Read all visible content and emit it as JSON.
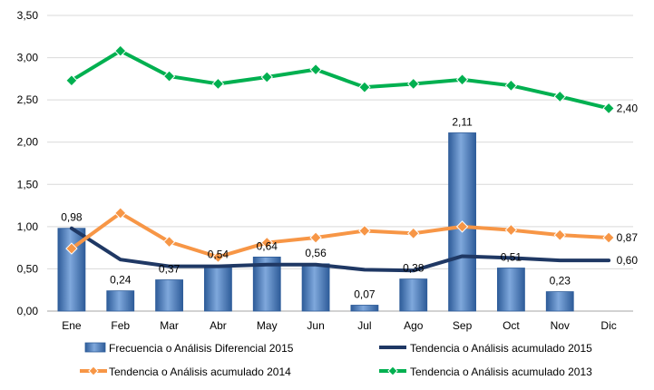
{
  "chart_data": {
    "type": "bar",
    "categories": [
      "Ene",
      "Feb",
      "Mar",
      "Abr",
      "May",
      "Jun",
      "Jul",
      "Ago",
      "Sep",
      "Oct",
      "Nov",
      "Dic"
    ],
    "ylim": [
      0,
      3.5
    ],
    "yticks": [
      "0,00",
      "0,50",
      "1,00",
      "1,50",
      "2,00",
      "2,50",
      "3,00",
      "3,50"
    ],
    "grid": true,
    "legend_position": "bottom",
    "bars": {
      "name": "Frecuencia o Análisis Diferencial 2015",
      "color": "#4F81BD",
      "values": [
        0.98,
        0.24,
        0.37,
        0.54,
        0.64,
        0.56,
        0.07,
        0.38,
        2.11,
        0.51,
        0.23,
        null
      ],
      "labels": [
        "0,98",
        "0,24",
        "0,37",
        "0,54",
        "0,64",
        "0,56",
        "0,07",
        "0,38",
        "2,11",
        "0,51",
        "0,23",
        ""
      ]
    },
    "series": [
      {
        "name": "Tendencia o Análisis acumulado 2015",
        "color": "#1F3864",
        "marker": "none",
        "values": [
          0.98,
          0.61,
          0.53,
          0.53,
          0.55,
          0.55,
          0.49,
          0.48,
          0.65,
          0.63,
          0.6,
          0.6
        ],
        "end_label": "0,60"
      },
      {
        "name": "Tendencia o Análisis acumulado 2014",
        "color": "#F79646",
        "marker": "diamond",
        "values": [
          0.74,
          1.16,
          0.82,
          0.64,
          0.81,
          0.87,
          0.95,
          0.92,
          1.0,
          0.96,
          0.9,
          0.87
        ],
        "end_label": "0,87"
      },
      {
        "name": "Tendencia o Análisis acumulado 2013",
        "color": "#00B050",
        "marker": "diamond",
        "values": [
          2.73,
          3.08,
          2.78,
          2.69,
          2.77,
          2.86,
          2.65,
          2.69,
          2.74,
          2.67,
          2.54,
          2.4
        ],
        "end_label": "2,40"
      }
    ]
  }
}
